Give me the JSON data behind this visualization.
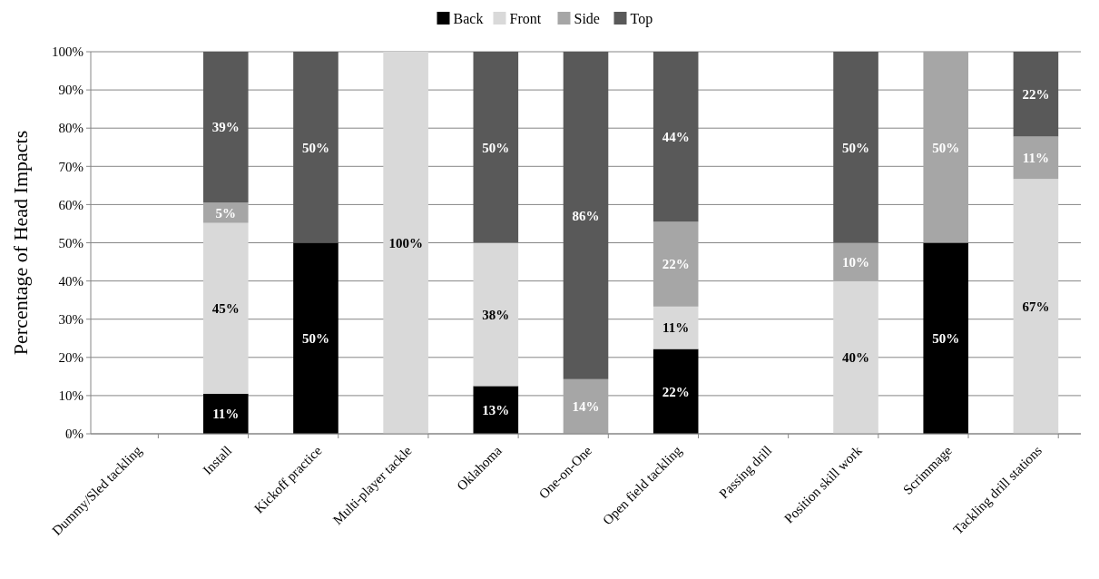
{
  "chart_data": {
    "type": "bar",
    "stacked": true,
    "ylabel": "Percentage of Head Impacts",
    "categories": [
      "Dummy/Sled tackling",
      "Install",
      "Kickoff practice",
      "Multi-player tackle",
      "Oklahoma",
      "One-on-One",
      "Open field tackling",
      "Passing drill",
      "Position skill work",
      "Scrimmage",
      "Tackling drill stations"
    ],
    "series": [
      {
        "name": "Back",
        "color": "#000000",
        "values": [
          null,
          10.5,
          50,
          null,
          12.5,
          null,
          22.2,
          null,
          null,
          50,
          null
        ],
        "value_labels": [
          null,
          "11%",
          "50%",
          null,
          "13%",
          null,
          "22%",
          null,
          null,
          "50%",
          null
        ]
      },
      {
        "name": "Front",
        "color": "#d9d9d9",
        "values": [
          null,
          44.7,
          null,
          100,
          37.5,
          null,
          11.1,
          null,
          40,
          null,
          66.7
        ],
        "value_labels": [
          null,
          "45%",
          null,
          "100%",
          "38%",
          null,
          "11%",
          null,
          "40%",
          null,
          "67%"
        ]
      },
      {
        "name": "Side",
        "color": "#a6a6a6",
        "values": [
          null,
          5.3,
          null,
          null,
          null,
          14.3,
          22.2,
          null,
          10,
          50,
          11.1
        ],
        "value_labels": [
          null,
          "5%",
          null,
          null,
          null,
          "14%",
          "22%",
          null,
          "10%",
          "50%",
          "11%"
        ]
      },
      {
        "name": "Top",
        "color": "#595959",
        "values": [
          null,
          39.5,
          50,
          null,
          50,
          85.7,
          44.5,
          null,
          50,
          null,
          22.2
        ],
        "value_labels": [
          null,
          "39%",
          "50%",
          null,
          "50%",
          "86%",
          "44%",
          null,
          "50%",
          null,
          "22%"
        ]
      }
    ],
    "ylim": [
      0,
      100
    ],
    "yticks": [
      {
        "value": 0,
        "label": "0%"
      },
      {
        "value": 10,
        "label": "10%"
      },
      {
        "value": 20,
        "label": "20%"
      },
      {
        "value": 30,
        "label": "30%"
      },
      {
        "value": 40,
        "label": "40%"
      },
      {
        "value": 50,
        "label": "50%"
      },
      {
        "value": 60,
        "label": "60%"
      },
      {
        "value": 70,
        "label": "70%"
      },
      {
        "value": 80,
        "label": "80%"
      },
      {
        "value": 90,
        "label": "90%"
      },
      {
        "value": 100,
        "label": "100%"
      }
    ],
    "grid": "y",
    "legend": "top"
  }
}
